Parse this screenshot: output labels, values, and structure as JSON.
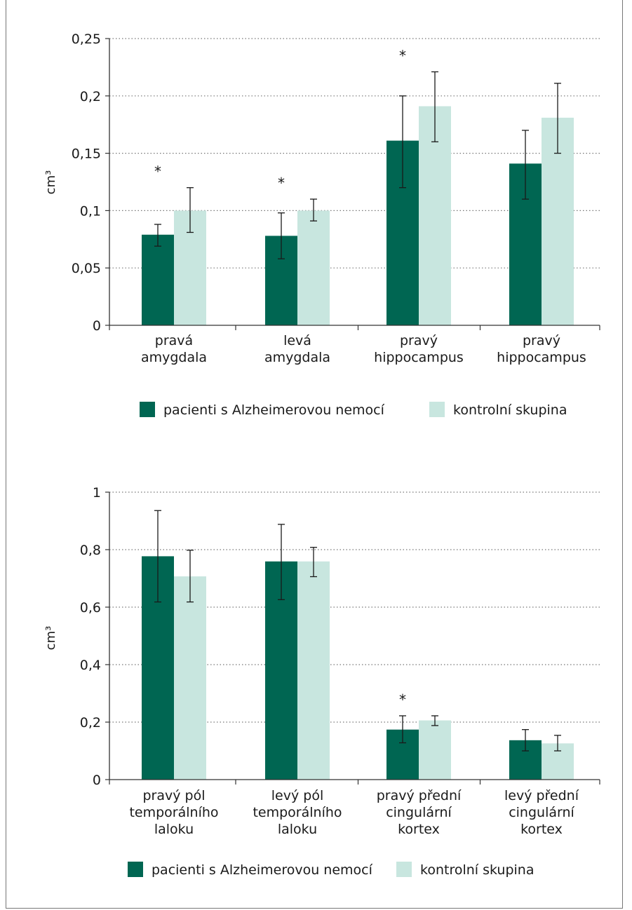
{
  "colors": {
    "patients": "#006652",
    "controls": "#c8e6df",
    "axis": "#333333",
    "grid": "#777777"
  },
  "chart_data": [
    {
      "type": "bar",
      "title": "",
      "ylabel": "cm³",
      "ylim": [
        0,
        0.25
      ],
      "yticks": [
        0,
        0.05,
        0.1,
        0.15,
        0.2,
        0.25
      ],
      "ytick_labels": [
        "0",
        "0,05",
        "0,1",
        "0,15",
        "0,2",
        "0,25"
      ],
      "categories": [
        [
          "pravá",
          "amygdala"
        ],
        [
          "levá",
          "amygdala"
        ],
        [
          "pravý",
          "hippocampus"
        ],
        [
          "pravý",
          "hippocampus"
        ]
      ],
      "series": [
        {
          "name": "pacienti s Alzheimerovou nemocí",
          "color": "#006652",
          "values": [
            0.079,
            0.078,
            0.161,
            0.141
          ],
          "err_low": [
            0.069,
            0.058,
            0.12,
            0.11
          ],
          "err_high": [
            0.088,
            0.098,
            0.2,
            0.17
          ]
        },
        {
          "name": "kontrolní skupina",
          "color": "#c8e6df",
          "values": [
            0.1,
            0.1,
            0.191,
            0.181
          ],
          "err_low": [
            0.081,
            0.091,
            0.16,
            0.15
          ],
          "err_high": [
            0.12,
            0.11,
            0.221,
            0.211
          ]
        }
      ],
      "significance": [
        true,
        true,
        true,
        false
      ],
      "significance_mark": "*",
      "grid": true,
      "legend": "bottom"
    },
    {
      "type": "bar",
      "title": "",
      "ylabel": "cm³",
      "ylim": [
        0,
        1
      ],
      "yticks": [
        0,
        0.2,
        0.4,
        0.6,
        0.8,
        1
      ],
      "ytick_labels": [
        "0",
        "0,2",
        "0,4",
        "0,6",
        "0,8",
        "1"
      ],
      "categories": [
        [
          "pravý pól",
          "temporálního",
          "laloku"
        ],
        [
          "levý pól",
          "temporálního",
          "laloku"
        ],
        [
          "pravý přední",
          "cingulární",
          "kortex"
        ],
        [
          "levý přední",
          "cingulární",
          "kortex"
        ]
      ],
      "series": [
        {
          "name": "pacienti s Alzheimerovou nemocí",
          "color": "#006652",
          "values": [
            0.777,
            0.759,
            0.174,
            0.137
          ],
          "err_low": [
            0.618,
            0.626,
            0.128,
            0.1
          ],
          "err_high": [
            0.936,
            0.888,
            0.222,
            0.174
          ]
        },
        {
          "name": "kontrolní skupina",
          "color": "#c8e6df",
          "values": [
            0.707,
            0.759,
            0.206,
            0.126
          ],
          "err_low": [
            0.618,
            0.706,
            0.188,
            0.1
          ],
          "err_high": [
            0.798,
            0.808,
            0.222,
            0.154
          ]
        }
      ],
      "significance": [
        false,
        false,
        true,
        false
      ],
      "significance_mark": "*",
      "grid": true,
      "legend": "bottom"
    }
  ]
}
